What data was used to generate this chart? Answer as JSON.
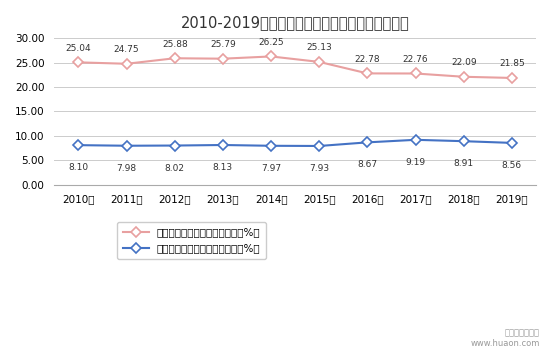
{
  "title": "2010-2019年牙买加男性、女性农业就业人员占比",
  "years": [
    "2010年",
    "2011年",
    "2012年",
    "2013年",
    "2014年",
    "2015年",
    "2016年",
    "2017年",
    "2018年",
    "2019年"
  ],
  "male_values": [
    25.04,
    24.75,
    25.88,
    25.79,
    26.25,
    25.13,
    22.78,
    22.76,
    22.09,
    21.85
  ],
  "female_values": [
    8.1,
    7.98,
    8.02,
    8.13,
    7.97,
    7.93,
    8.67,
    9.19,
    8.91,
    8.56
  ],
  "male_color": "#E8A0A0",
  "female_color": "#4472C4",
  "male_label": "牙买加农业男性就业人员占比（%）",
  "female_label": "牙买加农业女性就业人员占比（%）",
  "ylim": [
    0.0,
    30.0
  ],
  "yticks": [
    0.0,
    5.0,
    10.0,
    15.0,
    20.0,
    25.0,
    30.0
  ],
  "bg_color": "#FFFFFF",
  "grid_color": "#CCCCCC",
  "watermark_line1": "华经产业研究院",
  "watermark_line2": "www.huaon.com"
}
